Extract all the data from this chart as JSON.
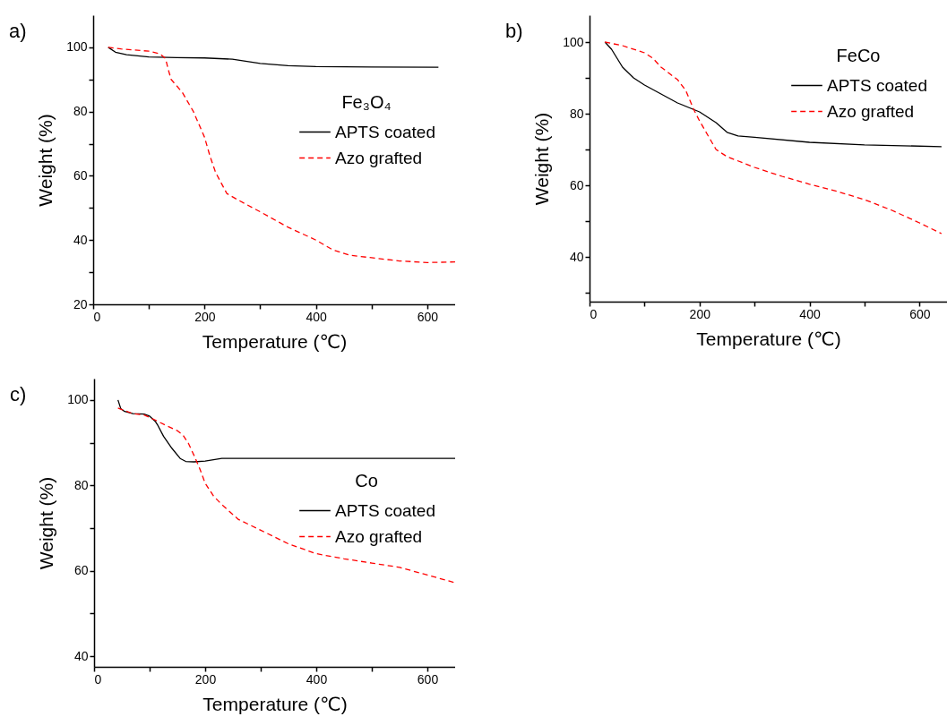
{
  "chart_data": [
    {
      "type": "line",
      "title": "a)",
      "xlabel": "Temperature (℃)",
      "ylabel": "Weight (%)",
      "legend_title": "Fe₃O₄",
      "legend": "right",
      "xlim": [
        0,
        650
      ],
      "ylim": [
        20,
        110
      ],
      "xticks": [
        0,
        {
          "value": 100,
          "label": null
        },
        200,
        {
          "value": 300,
          "label": null
        },
        400,
        {
          "value": 500,
          "label": null
        },
        600
      ],
      "yticks": [
        20,
        {
          "value": 30,
          "label": null
        },
        40,
        {
          "value": 50,
          "label": null
        },
        60,
        {
          "value": 70,
          "label": null
        },
        80,
        {
          "value": 90,
          "label": null
        },
        100
      ],
      "series": [
        {
          "name": "APTS coated",
          "color": "#000000",
          "line_style": "solid",
          "x": [
            27,
            40,
            60,
            100,
            150,
            200,
            250,
            300,
            350,
            400,
            500,
            620
          ],
          "values": [
            100,
            98.5,
            97.7,
            97,
            96.8,
            96.7,
            96.3,
            95,
            94.3,
            94,
            93.9,
            93.8
          ]
        },
        {
          "name": "Azo grafted",
          "color": "#ff0000",
          "line_style": "dashed",
          "x": [
            27,
            50,
            100,
            120,
            130,
            135,
            140,
            160,
            180,
            200,
            210,
            220,
            240,
            260,
            300,
            350,
            400,
            430,
            460,
            500,
            550,
            600,
            650
          ],
          "values": [
            100,
            99.5,
            98.8,
            98,
            96.5,
            93,
            90,
            86,
            80,
            72,
            66,
            61,
            54.5,
            52.5,
            48.8,
            44,
            40,
            37,
            35.3,
            34.5,
            33.5,
            33,
            33.2
          ]
        }
      ]
    },
    {
      "type": "line",
      "title": "b)",
      "xlabel": "Temperature (℃)",
      "ylabel": "Weight (%)",
      "legend_title": "FeCo",
      "legend": "right",
      "xlim": [
        0,
        650
      ],
      "ylim": [
        27.5,
        107.5
      ],
      "xticks": [
        0,
        {
          "value": 100,
          "label": null
        },
        200,
        {
          "value": 300,
          "label": null
        },
        400,
        {
          "value": 500,
          "label": null
        },
        600
      ],
      "yticks": [
        {
          "value": 30,
          "label": null
        },
        40,
        {
          "value": 50,
          "label": null
        },
        60,
        {
          "value": 70,
          "label": null
        },
        80,
        {
          "value": 90,
          "label": null
        },
        100
      ],
      "series": [
        {
          "name": "APTS coated",
          "color": "#000000",
          "line_style": "solid",
          "x": [
            28,
            40,
            50,
            60,
            80,
            100,
            130,
            160,
            200,
            230,
            250,
            270,
            300,
            400,
            500,
            640
          ],
          "values": [
            100,
            98,
            95.5,
            93,
            90,
            88,
            85.5,
            83,
            80.5,
            77.5,
            74.8,
            73.8,
            73.4,
            72,
            71.3,
            70.8
          ]
        },
        {
          "name": "Azo grafted",
          "color": "#ff0000",
          "line_style": "dashed",
          "x": [
            28,
            60,
            100,
            115,
            130,
            160,
            175,
            190,
            200,
            215,
            230,
            250,
            300,
            350,
            400,
            450,
            500,
            550,
            600,
            640
          ],
          "values": [
            100,
            99,
            97,
            95.5,
            93,
            89.5,
            86.5,
            81,
            78,
            74,
            70,
            68,
            65,
            62.5,
            60.3,
            58.3,
            56,
            53,
            49.5,
            46.5
          ]
        }
      ]
    },
    {
      "type": "line",
      "title": "c)",
      "xlabel": "Temperature (℃)",
      "ylabel": "Weight (%)",
      "legend_title": "Co",
      "legend": "right",
      "xlim": [
        0,
        650
      ],
      "ylim": [
        37.5,
        105
      ],
      "xticks": [
        0,
        {
          "value": 100,
          "label": null
        },
        200,
        {
          "value": 300,
          "label": null
        },
        400,
        {
          "value": 500,
          "label": null
        },
        600
      ],
      "yticks": [
        40,
        {
          "value": 50,
          "label": null
        },
        60,
        {
          "value": 70,
          "label": null
        },
        80,
        {
          "value": 90,
          "label": null
        },
        100
      ],
      "series": [
        {
          "name": "APTS coated",
          "color": "#000000",
          "line_style": "solid",
          "x": [
            43,
            48,
            55,
            70,
            90,
            100,
            110,
            115,
            125,
            140,
            155,
            165,
            180,
            200,
            220,
            230,
            650
          ],
          "values": [
            100,
            98,
            97.3,
            96.8,
            96.7,
            96.2,
            95,
            94,
            91.5,
            88.7,
            86.3,
            85.6,
            85.5,
            85.7,
            86.1,
            86.3,
            86.3
          ]
        },
        {
          "name": "Azo grafted",
          "color": "#ff0000",
          "line_style": "dashed",
          "x": [
            43,
            55,
            70,
            90,
            110,
            130,
            150,
            160,
            170,
            180,
            190,
            200,
            215,
            230,
            260,
            300,
            350,
            400,
            450,
            500,
            550,
            600,
            650
          ],
          "values": [
            98.1,
            97.5,
            96.8,
            96.5,
            95.3,
            94,
            92.8,
            91.8,
            89.8,
            87,
            84,
            80.5,
            77.5,
            75.5,
            72,
            69.5,
            66.3,
            64,
            62.8,
            61.8,
            60.8,
            59,
            57.2
          ]
        }
      ]
    }
  ]
}
